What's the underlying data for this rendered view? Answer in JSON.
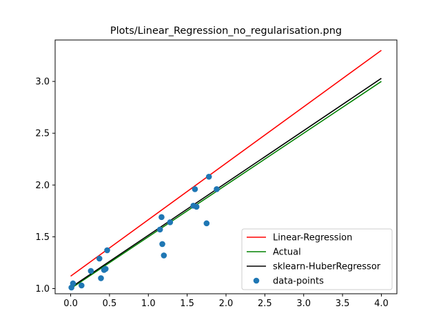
{
  "chart_data": {
    "type": "scatter",
    "title": "Plots/Linear_Regression_no_regularisation.png",
    "xlabel": "",
    "ylabel": "",
    "xlim": [
      -0.2,
      4.2
    ],
    "ylim": [
      0.95,
      3.4
    ],
    "xticks": [
      0.0,
      0.5,
      1.0,
      1.5,
      2.0,
      2.5,
      3.0,
      3.5,
      4.0
    ],
    "xtick_labels": [
      "0.0",
      "0.5",
      "1.0",
      "1.5",
      "2.0",
      "2.5",
      "3.0",
      "3.5",
      "4.0"
    ],
    "yticks": [
      1.0,
      1.5,
      2.0,
      2.5,
      3.0
    ],
    "ytick_labels": [
      "1.0",
      "1.5",
      "2.0",
      "2.5",
      "3.0"
    ],
    "grid": false,
    "legend_position": "lower-right",
    "series": [
      {
        "name": "Linear-Regression",
        "kind": "line",
        "color": "#ff0000",
        "x": [
          0.0,
          4.0
        ],
        "y": [
          1.12,
          3.3
        ]
      },
      {
        "name": "Actual",
        "kind": "line",
        "color": "#008000",
        "x": [
          0.0,
          4.0
        ],
        "y": [
          1.0,
          3.0
        ]
      },
      {
        "name": "sklearn-HuberRegressor",
        "kind": "line",
        "color": "#000000",
        "x": [
          0.0,
          4.0
        ],
        "y": [
          1.01,
          3.03
        ]
      },
      {
        "name": "data-points",
        "kind": "scatter",
        "color": "#1f77b4",
        "x": [
          0.01,
          0.03,
          0.14,
          0.26,
          0.37,
          0.39,
          0.43,
          0.45,
          0.47,
          1.15,
          1.17,
          1.18,
          1.2,
          1.28,
          1.58,
          1.6,
          1.62,
          1.75,
          1.78,
          1.88
        ],
        "y": [
          1.01,
          1.05,
          1.03,
          1.17,
          1.29,
          1.1,
          1.18,
          1.19,
          1.37,
          1.57,
          1.69,
          1.43,
          1.32,
          1.64,
          1.8,
          1.96,
          1.79,
          1.63,
          2.08,
          1.96
        ]
      }
    ]
  }
}
